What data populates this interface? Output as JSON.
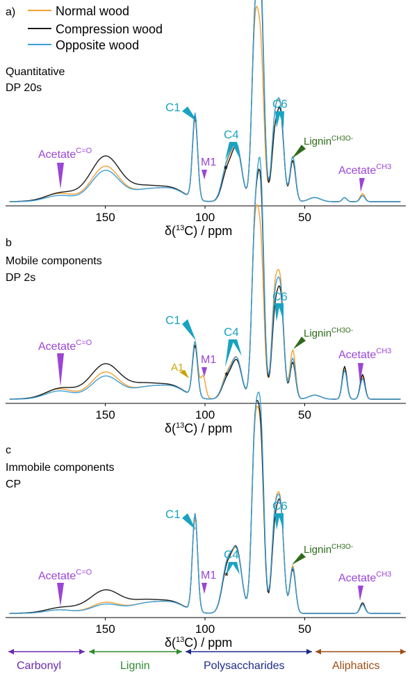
{
  "colors": {
    "normal": "#f5a030",
    "compression": "#1a1a1a",
    "opposite": "#3a9fd8",
    "carbon_label": "#1aa3c0",
    "acetate": "#9b45d6",
    "lignin_label": "#2e6b1a",
    "a1": "#c9a400",
    "carbonyl": "#6a2ab0",
    "lignin_region": "#2e8b2e",
    "polysaccharides": "#1e2a8a",
    "aliphatics": "#9b4e12"
  },
  "legend": {
    "normal": "Normal wood",
    "compression": "Compression wood",
    "opposite": "Opposite wood"
  },
  "panel_a": {
    "letter": "a)",
    "desc_line1": "Quantitative",
    "desc_line2": "DP 20s"
  },
  "panel_b": {
    "letter": "b",
    "desc_line1": "Mobile components",
    "desc_line2": "DP 2s"
  },
  "panel_c": {
    "letter": "c",
    "desc_line1": "Immobile components",
    "desc_line2": "CP"
  },
  "axis": {
    "label_main": "δ(",
    "label_sup": "13",
    "label_end": "C) / ppm",
    "ticks": [
      "150",
      "100",
      "50"
    ]
  },
  "labels": {
    "c1": "C1",
    "c4": "C4",
    "c6": "C6",
    "m1": "M1",
    "a1": "A1",
    "asterisk": "*",
    "acetate": "Acetate",
    "acetate_co_sup": "C=O",
    "acetate_ch3_sup": "CH3",
    "lignin": "Lignin",
    "lignin_sup": "CH3O-"
  },
  "regions": {
    "carbonyl": "Carbonyl",
    "lignin": "Lignin",
    "polysaccharides": "Polysaccharides",
    "aliphatics": "Aliphatics"
  },
  "chart_data": [
    {
      "type": "line",
      "panel": "a",
      "x_axis": "chemical shift (ppm)",
      "xlim": [
        200,
        0
      ],
      "x_ticks": [
        150,
        100,
        50
      ],
      "series": [
        {
          "name": "Normal wood",
          "peaks": [
            {
              "x": 173,
              "y": 4
            },
            {
              "x": 150,
              "y": 17
            },
            {
              "x": 105,
              "y": 41
            },
            {
              "x": 89,
              "y": 16
            },
            {
              "x": 84,
              "y": 26
            },
            {
              "x": 75,
              "y": 78
            },
            {
              "x": 72,
              "y": 68
            },
            {
              "x": 65,
              "y": 37
            },
            {
              "x": 62,
              "y": 40
            },
            {
              "x": 56,
              "y": 22
            },
            {
              "x": 21,
              "y": 4
            }
          ]
        },
        {
          "name": "Compression wood",
          "peaks": [
            {
              "x": 173,
              "y": 3
            },
            {
              "x": 150,
              "y": 18
            },
            {
              "x": 105,
              "y": 40
            },
            {
              "x": 89,
              "y": 14
            },
            {
              "x": 84,
              "y": 25
            },
            {
              "x": 75,
              "y": 80
            },
            {
              "x": 72,
              "y": 95
            },
            {
              "x": 65,
              "y": 30
            },
            {
              "x": 62,
              "y": 39
            },
            {
              "x": 56,
              "y": 20
            },
            {
              "x": 21,
              "y": 3
            }
          ]
        },
        {
          "name": "Opposite wood",
          "peaks": [
            {
              "x": 173,
              "y": 3
            },
            {
              "x": 150,
              "y": 15
            },
            {
              "x": 105,
              "y": 42
            },
            {
              "x": 89,
              "y": 17
            },
            {
              "x": 84,
              "y": 26
            },
            {
              "x": 75,
              "y": 78
            },
            {
              "x": 72,
              "y": 100
            },
            {
              "x": 65,
              "y": 37
            },
            {
              "x": 62,
              "y": 41
            },
            {
              "x": 56,
              "y": 22
            },
            {
              "x": 21,
              "y": 3
            }
          ]
        }
      ]
    },
    {
      "type": "line",
      "panel": "b",
      "x_axis": "chemical shift (ppm)",
      "xlim": [
        200,
        0
      ],
      "x_ticks": [
        150,
        100,
        50
      ],
      "series": [
        {
          "name": "Normal wood",
          "peaks": [
            {
              "x": 173,
              "y": 5
            },
            {
              "x": 150,
              "y": 13
            },
            {
              "x": 105,
              "y": 27
            },
            {
              "x": 101,
              "y": 11
            },
            {
              "x": 89,
              "y": 11
            },
            {
              "x": 84,
              "y": 19
            },
            {
              "x": 75,
              "y": 77
            },
            {
              "x": 72,
              "y": 69
            },
            {
              "x": 65,
              "y": 48
            },
            {
              "x": 62,
              "y": 50
            },
            {
              "x": 56,
              "y": 24
            },
            {
              "x": 30,
              "y": 13
            },
            {
              "x": 21,
              "y": 11
            }
          ]
        },
        {
          "name": "Compression wood",
          "peaks": [
            {
              "x": 173,
              "y": 4
            },
            {
              "x": 150,
              "y": 13
            },
            {
              "x": 105,
              "y": 25
            },
            {
              "x": 89,
              "y": 9
            },
            {
              "x": 84,
              "y": 18
            },
            {
              "x": 75,
              "y": 78
            },
            {
              "x": 72,
              "y": 93
            },
            {
              "x": 65,
              "y": 38
            },
            {
              "x": 62,
              "y": 46
            },
            {
              "x": 56,
              "y": 18
            },
            {
              "x": 30,
              "y": 14
            },
            {
              "x": 21,
              "y": 12
            }
          ]
        },
        {
          "name": "Opposite wood",
          "peaks": [
            {
              "x": 173,
              "y": 4
            },
            {
              "x": 150,
              "y": 11
            },
            {
              "x": 105,
              "y": 27
            },
            {
              "x": 89,
              "y": 10
            },
            {
              "x": 84,
              "y": 19
            },
            {
              "x": 75,
              "y": 77
            },
            {
              "x": 72,
              "y": 100
            },
            {
              "x": 65,
              "y": 44
            },
            {
              "x": 62,
              "y": 48
            },
            {
              "x": 56,
              "y": 20
            },
            {
              "x": 30,
              "y": 12
            },
            {
              "x": 21,
              "y": 10
            }
          ]
        }
      ]
    },
    {
      "type": "line",
      "panel": "c",
      "x_axis": "chemical shift (ppm)",
      "xlim": [
        200,
        0
      ],
      "x_ticks": [
        150,
        100,
        50
      ],
      "series": [
        {
          "name": "Normal wood",
          "peaks": [
            {
              "x": 173,
              "y": 2
            },
            {
              "x": 150,
              "y": 6
            },
            {
              "x": 105,
              "y": 53
            },
            {
              "x": 89,
              "y": 24
            },
            {
              "x": 84,
              "y": 33
            },
            {
              "x": 75,
              "y": 93
            },
            {
              "x": 72,
              "y": 88
            },
            {
              "x": 65,
              "y": 51
            },
            {
              "x": 62,
              "y": 55
            },
            {
              "x": 56,
              "y": 27
            },
            {
              "x": 21,
              "y": 5
            }
          ]
        },
        {
          "name": "Compression wood",
          "peaks": [
            {
              "x": 173,
              "y": 2
            },
            {
              "x": 150,
              "y": 9
            },
            {
              "x": 105,
              "y": 55
            },
            {
              "x": 89,
              "y": 24
            },
            {
              "x": 84,
              "y": 34
            },
            {
              "x": 75,
              "y": 96
            },
            {
              "x": 72,
              "y": 90
            },
            {
              "x": 65,
              "y": 44
            },
            {
              "x": 62,
              "y": 54
            },
            {
              "x": 56,
              "y": 25
            },
            {
              "x": 21,
              "y": 6
            }
          ]
        },
        {
          "name": "Opposite wood",
          "peaks": [
            {
              "x": 173,
              "y": 2
            },
            {
              "x": 150,
              "y": 5
            },
            {
              "x": 105,
              "y": 55
            },
            {
              "x": 89,
              "y": 26
            },
            {
              "x": 84,
              "y": 33
            },
            {
              "x": 75,
              "y": 93
            },
            {
              "x": 72,
              "y": 100
            },
            {
              "x": 65,
              "y": 50
            },
            {
              "x": 62,
              "y": 54
            },
            {
              "x": 56,
              "y": 26
            },
            {
              "x": 21,
              "y": 5
            }
          ]
        }
      ]
    }
  ],
  "region_bands": [
    {
      "name": "Carbonyl",
      "from_ppm": 200,
      "to_ppm": 160
    },
    {
      "name": "Lignin",
      "from_ppm": 160,
      "to_ppm": 110
    },
    {
      "name": "Polysaccharides",
      "from_ppm": 110,
      "to_ppm": 45
    },
    {
      "name": "Aliphatics",
      "from_ppm": 45,
      "to_ppm": 0
    }
  ]
}
